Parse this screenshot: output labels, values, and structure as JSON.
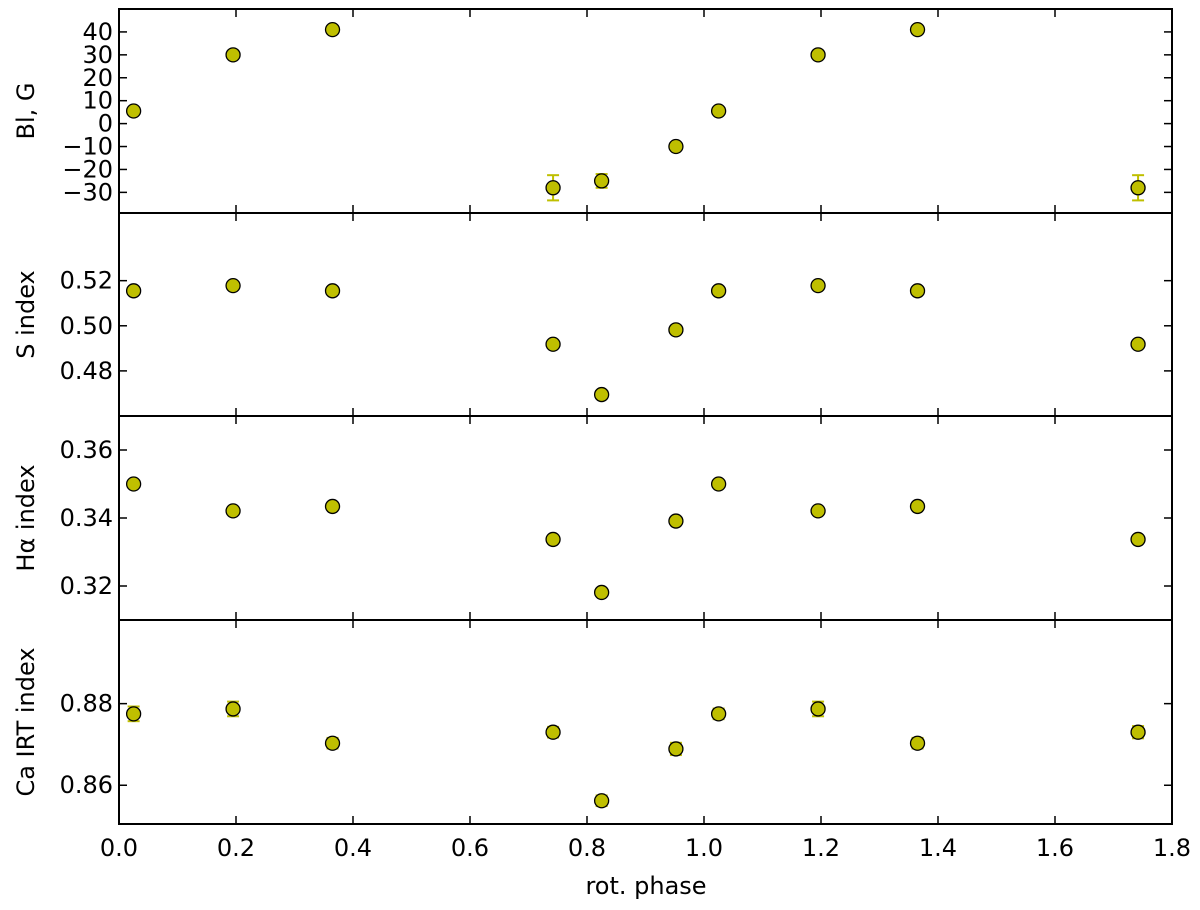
{
  "chart_data": {
    "type": "scatter",
    "xlabel": "rot. phase",
    "xlim": [
      0.0,
      1.8
    ],
    "xticks": [
      0.0,
      0.2,
      0.4,
      0.6,
      0.8,
      1.0,
      1.2,
      1.4,
      1.6,
      1.8
    ],
    "xtick_labels": [
      "0.0",
      "0.2",
      "0.4",
      "0.6",
      "0.8",
      "1.0",
      "1.2",
      "1.4",
      "1.6",
      "1.8"
    ],
    "x": [
      0.025,
      0.195,
      0.365,
      0.742,
      0.825,
      0.952,
      1.025,
      1.195,
      1.365,
      1.742
    ],
    "marker_color": "#bfbf00",
    "marker_edge": "#000000",
    "errorbar_color": "#bfbf00",
    "grid": false,
    "shared_x": true,
    "panels": [
      {
        "ylabel": "Bl, G",
        "ylim": [
          -39,
          50
        ],
        "yticks": [
          -30,
          -20,
          -10,
          0,
          10,
          20,
          30,
          40
        ],
        "ytick_labels": [
          "−30",
          "−20",
          "−10",
          "0",
          "10",
          "20",
          "30",
          "40"
        ],
        "y": [
          5.5,
          30,
          41,
          -28,
          -25,
          -10,
          5.5,
          30,
          41,
          -28
        ],
        "yerr": [
          1,
          1,
          1,
          5.5,
          3,
          1,
          1,
          1,
          1,
          5.5
        ]
      },
      {
        "ylabel": "S index",
        "ylim": [
          0.46,
          0.55
        ],
        "yticks": [
          0.48,
          0.5,
          0.52
        ],
        "ytick_labels": [
          "0.48",
          "0.50",
          "0.52"
        ],
        "y": [
          0.5155,
          0.5178,
          0.5155,
          0.4918,
          0.4695,
          0.4982,
          0.5155,
          0.5178,
          0.5155,
          0.4918
        ],
        "yerr": [
          0.0005,
          0.0005,
          0.0005,
          0.0005,
          0.0005,
          0.0005,
          0.0005,
          0.0005,
          0.0005,
          0.0005
        ]
      },
      {
        "ylabel": "Hα index",
        "ylim": [
          0.31,
          0.37
        ],
        "yticks": [
          0.32,
          0.34,
          0.36
        ],
        "ytick_labels": [
          "0.32",
          "0.34",
          "0.36"
        ],
        "y": [
          0.35,
          0.3421,
          0.3434,
          0.3337,
          0.3181,
          0.3391,
          0.35,
          0.3421,
          0.3434,
          0.3337
        ],
        "yerr": [
          0.0007,
          0.0007,
          0.0007,
          0.0007,
          0.0007,
          0.0007,
          0.0007,
          0.0007,
          0.0007,
          0.0007
        ]
      },
      {
        "ylabel": "Ca IRT index",
        "ylim": [
          0.8505,
          0.9005
        ],
        "yticks": [
          0.86,
          0.88
        ],
        "ytick_labels": [
          "0.86",
          "0.88"
        ],
        "y": [
          0.8775,
          0.8787,
          0.8703,
          0.873,
          0.8562,
          0.8689,
          0.8775,
          0.8787,
          0.8703,
          0.873
        ],
        "yerr": [
          0.0018,
          0.0018,
          0.0013,
          0.0013,
          0.0013,
          0.0015,
          0.0013,
          0.0018,
          0.0013,
          0.0015
        ]
      }
    ]
  }
}
